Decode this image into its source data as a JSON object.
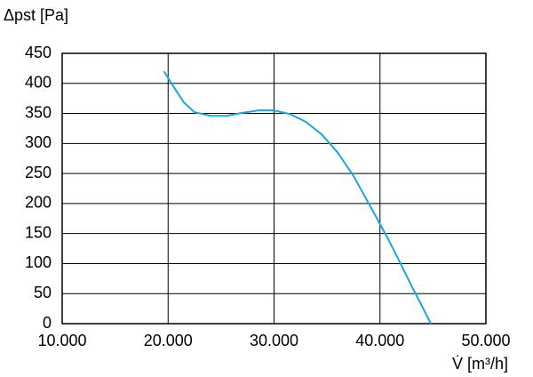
{
  "chart_data": {
    "type": "line",
    "y_label": "Δpst [Pa]",
    "x_label": "V̇ [m³/h]",
    "xlim": [
      10000,
      50000
    ],
    "ylim": [
      0,
      450
    ],
    "xticks": [
      {
        "value": 10000,
        "label": "10.000"
      },
      {
        "value": 20000,
        "label": "20.000"
      },
      {
        "value": 30000,
        "label": "30.000"
      },
      {
        "value": 40000,
        "label": "40.000"
      },
      {
        "value": 50000,
        "label": "50.000"
      }
    ],
    "yticks": [
      0,
      50,
      100,
      150,
      200,
      250,
      300,
      350,
      400,
      450
    ],
    "grid": true,
    "series": [
      {
        "color": "#1ba6de",
        "x": [
          19600,
          20500,
          21500,
          22500,
          24000,
          25500,
          27000,
          28500,
          30000,
          31500,
          33000,
          34500,
          36000,
          37500,
          39000,
          40000,
          41000,
          42000,
          43000,
          44000,
          44800
        ],
        "values": [
          420,
          395,
          368,
          352,
          346,
          346,
          351,
          355,
          355,
          349,
          336,
          315,
          285,
          246,
          198,
          166,
          133,
          98,
          62,
          28,
          0
        ]
      }
    ]
  }
}
